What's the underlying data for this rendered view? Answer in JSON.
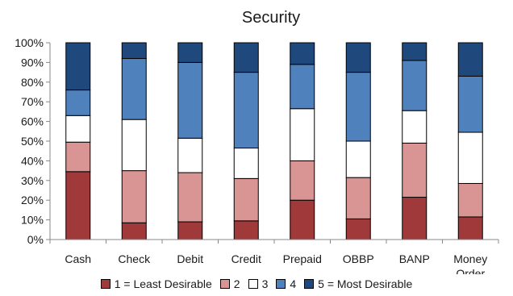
{
  "chart_data": {
    "type": "bar",
    "stacked": true,
    "normalized": true,
    "title": "Security",
    "xlabel": "",
    "ylabel": "",
    "ylim": [
      0,
      100
    ],
    "yticks": [
      "0%",
      "10%",
      "20%",
      "30%",
      "40%",
      "50%",
      "60%",
      "70%",
      "80%",
      "90%",
      "100%"
    ],
    "grid": false,
    "legend_position": "bottom",
    "categories": [
      "Cash",
      "Check",
      "Debit",
      "Credit",
      "Prepaid",
      "OBBP",
      "BANP",
      "Money Order"
    ],
    "series": [
      {
        "name": "1 = Least Desirable",
        "color": "#a0393a",
        "values": [
          34.5,
          8.5,
          9,
          9.5,
          20,
          10.5,
          21.5,
          11.5
        ]
      },
      {
        "name": "2",
        "color": "#d99594",
        "values": [
          15,
          26.5,
          25,
          21.5,
          20,
          21,
          27.5,
          17
        ]
      },
      {
        "name": "3",
        "color": "#ffffff",
        "values": [
          13.5,
          26,
          17.5,
          15.5,
          26.5,
          18.5,
          16.5,
          26
        ]
      },
      {
        "name": "4",
        "color": "#4f81bd",
        "values": [
          13,
          31,
          38.5,
          38.5,
          22.5,
          35,
          25.5,
          28.5
        ]
      },
      {
        "name": "5 = Most Desirable",
        "color": "#1f497d",
        "values": [
          24,
          8,
          10,
          15,
          11,
          15,
          9,
          17
        ]
      }
    ]
  }
}
